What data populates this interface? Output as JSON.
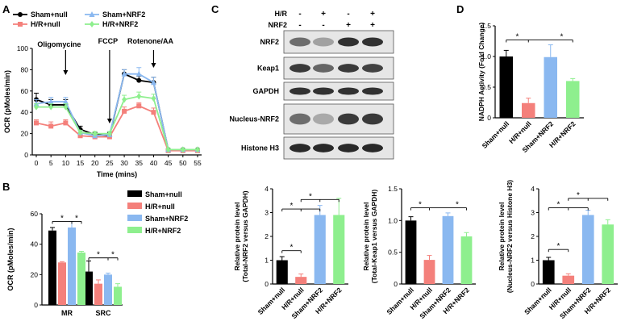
{
  "colors": {
    "sham_null": "#000000",
    "hr_null": "#f4807b",
    "sham_nrf2": "#8ab8f0",
    "hr_nrf2": "#8eef8e",
    "axis": "#000000"
  },
  "panels": {
    "A": "A",
    "B": "B",
    "C": "C",
    "D": "D"
  },
  "blot": {
    "header_labels": [
      "H/R",
      "NRF2"
    ],
    "signs": [
      [
        "-",
        "+",
        "-",
        "+"
      ],
      [
        "-",
        "-",
        "+",
        "+"
      ]
    ],
    "bands": [
      "NRF2",
      "Keap1",
      "GAPDH",
      "Nucleus-NRF2",
      "Histone H3"
    ],
    "intensity": [
      [
        0.55,
        0.25,
        0.9,
        0.9
      ],
      [
        0.85,
        0.6,
        0.85,
        0.8
      ],
      [
        0.9,
        0.9,
        0.9,
        0.9
      ],
      [
        0.55,
        0.2,
        0.85,
        0.85
      ],
      [
        0.95,
        0.95,
        0.95,
        0.95
      ]
    ]
  },
  "chart_data": [
    {
      "id": "A",
      "type": "line",
      "xlabel": "Time (mins)",
      "ylabel": "OCR (pMoles/min)",
      "xlim": [
        0,
        55
      ],
      "ylim": [
        0,
        100
      ],
      "xticks": [
        0,
        5,
        10,
        15,
        20,
        25,
        30,
        35,
        40,
        45,
        50,
        55
      ],
      "yticks": [
        0,
        20,
        40,
        60,
        80,
        100
      ],
      "x": [
        0,
        5,
        10,
        15,
        20,
        25,
        30,
        35,
        40,
        45,
        50,
        55
      ],
      "legend": [
        "Sham+null",
        "H/R+null",
        "Sham+NRF2",
        "H/R+NRF2"
      ],
      "annotations": [
        {
          "text": "Oligomycine",
          "x": 10
        },
        {
          "text": "FCCP",
          "x": 25
        },
        {
          "text": "Rotenone/AA",
          "x": 40
        }
      ],
      "series": [
        {
          "name": "Sham+null",
          "color": "#000000",
          "marker": "circle",
          "values": [
            52,
            47,
            47,
            24,
            19,
            18,
            76,
            70,
            68,
            5,
            5,
            5
          ],
          "err": [
            6,
            5,
            5,
            3,
            2,
            3,
            4,
            4,
            5,
            1,
            1,
            1
          ]
        },
        {
          "name": "H/R+null",
          "color": "#f4807b",
          "marker": "square",
          "values": [
            30,
            27,
            30,
            18,
            17,
            17,
            41,
            46,
            40,
            4,
            4,
            4
          ],
          "err": [
            3,
            4,
            3,
            2,
            2,
            2,
            4,
            3,
            4,
            1,
            1,
            1
          ]
        },
        {
          "name": "Sham+NRF2",
          "color": "#8ab8f0",
          "marker": "triangle",
          "values": [
            48,
            50,
            50,
            21,
            18,
            19,
            76,
            76,
            68,
            5,
            5,
            5
          ],
          "err": [
            4,
            4,
            4,
            2,
            2,
            3,
            4,
            6,
            5,
            1,
            1,
            1
          ]
        },
        {
          "name": "H/R+NRF2",
          "color": "#8eef8e",
          "marker": "diamond",
          "values": [
            45,
            45,
            45,
            21,
            20,
            20,
            52,
            55,
            53,
            5,
            5,
            5
          ],
          "err": [
            3,
            3,
            3,
            2,
            2,
            2,
            4,
            4,
            4,
            1,
            1,
            1
          ]
        }
      ]
    },
    {
      "id": "B",
      "type": "bar",
      "ylabel": "OCR (pMoles/min)",
      "ylim": [
        0,
        60
      ],
      "yticks": [
        0,
        20,
        40,
        60
      ],
      "categories": [
        "MR",
        "SRC"
      ],
      "legend": [
        "Sham+null",
        "H/R+null",
        "Sham+NRF2",
        "H/R+NRF2"
      ],
      "series": [
        {
          "name": "Sham+null",
          "color": "#000000",
          "values": [
            49,
            22
          ],
          "err": [
            2,
            7
          ]
        },
        {
          "name": "H/R+null",
          "color": "#f4807b",
          "values": [
            28,
            14
          ],
          "err": [
            0.5,
            2.5
          ]
        },
        {
          "name": "Sham+NRF2",
          "color": "#8ab8f0",
          "values": [
            51,
            20
          ],
          "err": [
            4,
            1
          ]
        },
        {
          "name": "H/R+NRF2",
          "color": "#8eef8e",
          "values": [
            34.5,
            12
          ],
          "err": [
            0.8,
            2
          ]
        }
      ],
      "significance": [
        {
          "group": 0,
          "from": 0,
          "to": 1,
          "mid": 2,
          "y": 55,
          "label": "*"
        },
        {
          "group": 1,
          "from": 0,
          "to": 1,
          "mid": 2,
          "y": 31,
          "label": "*"
        }
      ]
    },
    {
      "id": "C1",
      "type": "bar",
      "ylabel": [
        "Relative protein level",
        "(Total-NRF2 versus GAPDH)"
      ],
      "ylim": [
        0,
        4
      ],
      "yticks": [
        0,
        1,
        2,
        3,
        4
      ],
      "categories": [
        "Sham+null",
        "H/R+null",
        "Sham+NRF2",
        "H/R+NRF2"
      ],
      "colors": [
        "#000000",
        "#f4807b",
        "#8ab8f0",
        "#8eef8e"
      ],
      "values": [
        1.0,
        0.3,
        2.9,
        2.9
      ],
      "err": [
        0.15,
        0.12,
        0.4,
        0.7
      ],
      "significance": [
        {
          "from": 0,
          "to": 1,
          "y": 1.4,
          "label": "*"
        },
        {
          "from": 0,
          "to": 2,
          "mid": 1,
          "y": 3.15,
          "label": "*"
        },
        {
          "from": 1,
          "to": 3,
          "mid": 2,
          "y": 3.55,
          "label": "*"
        }
      ]
    },
    {
      "id": "C2",
      "type": "bar",
      "ylabel": [
        "Relative protein level",
        "(Total-Keap1 versus GAPDH)"
      ],
      "ylim": [
        0,
        1.5
      ],
      "yticks": [
        0,
        0.5,
        1.0,
        1.5
      ],
      "categories": [
        "Sham+null",
        "H/R+null",
        "Sham+NRF2",
        "H/R+NRF2"
      ],
      "colors": [
        "#000000",
        "#f4807b",
        "#8ab8f0",
        "#8eef8e"
      ],
      "values": [
        1.0,
        0.38,
        1.07,
        0.75
      ],
      "err": [
        0.06,
        0.07,
        0.05,
        0.06
      ],
      "significance": [
        {
          "from": 0,
          "to": 3,
          "mid": 1,
          "y": 1.2,
          "label": "*",
          "star_at": [
            0.5,
            2.5
          ]
        }
      ]
    },
    {
      "id": "C3",
      "type": "bar",
      "ylabel": [
        "Relative protein level",
        "(Nucleus-NRF2 versus Histone H3)"
      ],
      "ylim": [
        0,
        4
      ],
      "yticks": [
        0,
        1,
        2,
        3,
        4
      ],
      "categories": [
        "Sham+null",
        "H/R+null",
        "Sham+NRF2",
        "H/R+NRF2"
      ],
      "colors": [
        "#000000",
        "#f4807b",
        "#8ab8f0",
        "#8eef8e"
      ],
      "values": [
        1.0,
        0.35,
        2.9,
        2.5
      ],
      "err": [
        0.12,
        0.08,
        0.2,
        0.2
      ],
      "significance": [
        {
          "from": 0,
          "to": 1,
          "y": 1.45,
          "label": "*"
        },
        {
          "from": 0,
          "to": 2,
          "mid": 1,
          "y": 3.2,
          "label": "*"
        },
        {
          "from": 1,
          "to": 3,
          "mid": 2,
          "y": 3.6,
          "label": "*"
        }
      ]
    },
    {
      "id": "D",
      "type": "bar",
      "ylabel": [
        "NADPH Activity (Fold Change)"
      ],
      "ylim": [
        0,
        1.5
      ],
      "yticks": [
        0,
        0.5,
        1.0,
        1.5
      ],
      "categories": [
        "Sham+null",
        "H/R+null",
        "Sham+NRF2",
        "H/R+NRF2"
      ],
      "colors": [
        "#000000",
        "#f4807b",
        "#8ab8f0",
        "#8eef8e"
      ],
      "values": [
        1.0,
        0.24,
        0.99,
        0.6
      ],
      "err": [
        0.1,
        0.08,
        0.2,
        0.04
      ],
      "significance": [
        {
          "from": 0,
          "to": 3,
          "mid": 1,
          "y": 1.27,
          "label": "*",
          "star_at": [
            0.5,
            2.5
          ]
        }
      ]
    }
  ]
}
